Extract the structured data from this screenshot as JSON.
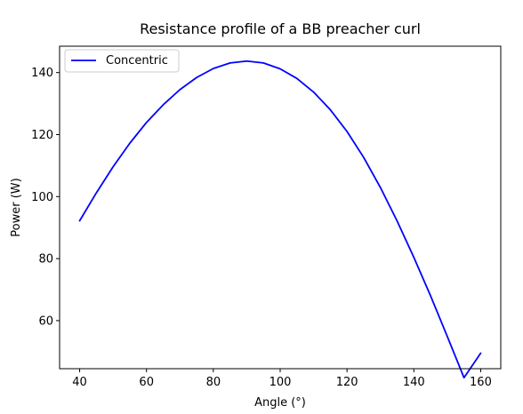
{
  "chart_data": {
    "type": "line",
    "title": "Resistance profile of a BB preacher curl",
    "xlabel": "Angle (°)",
    "ylabel": "Power (W)",
    "xlim": [
      34,
      166
    ],
    "ylim": [
      44.5,
      148.5
    ],
    "xticks": [
      40,
      60,
      80,
      100,
      120,
      140,
      160
    ],
    "yticks": [
      60,
      80,
      100,
      120,
      140
    ],
    "grid": false,
    "legend_position": "upper-left",
    "series": [
      {
        "name": "Concentric",
        "color": "#0000ff",
        "x": [
          40,
          45,
          50,
          55,
          60,
          65,
          70,
          75,
          80,
          85,
          90,
          95,
          100,
          105,
          110,
          115,
          120,
          125,
          130,
          135,
          140,
          145,
          150,
          155,
          160
        ],
        "y": [
          92.2,
          101.2,
          109.6,
          117.2,
          123.9,
          129.6,
          134.5,
          138.4,
          141.3,
          143.1,
          143.7,
          143.1,
          141.2,
          138.1,
          133.7,
          128.0,
          121.0,
          112.6,
          102.9,
          92.1,
          80.4,
          68.0,
          54.9,
          41.6,
          49.5
        ]
      }
    ]
  }
}
